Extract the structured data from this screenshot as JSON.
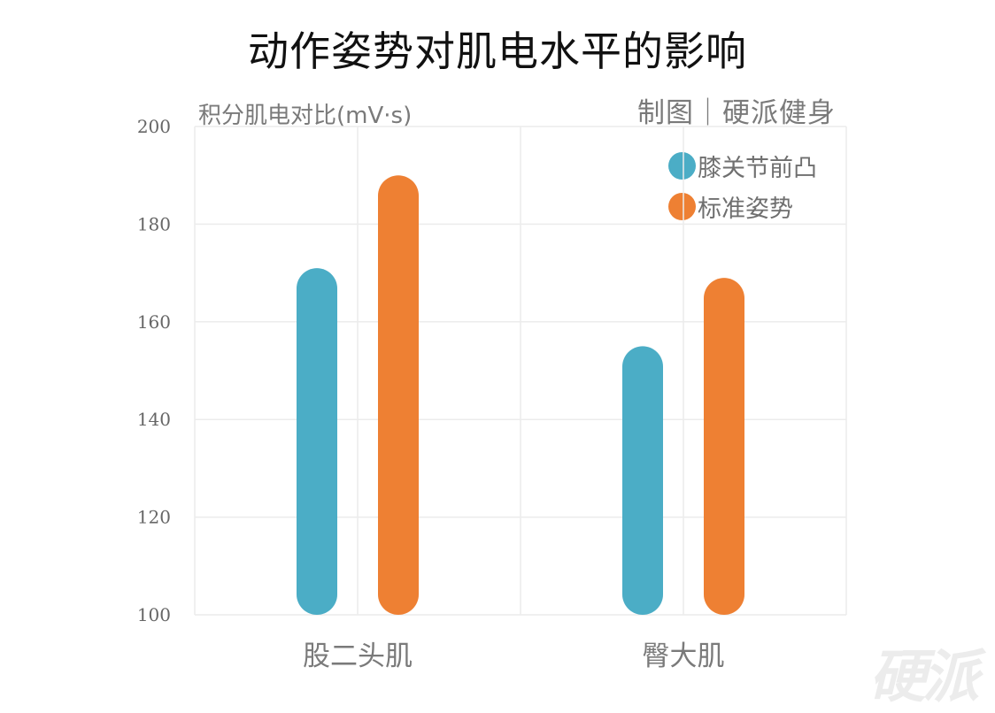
{
  "title": "动作姿势对肌电水平的影响",
  "credit": "制图｜硬派健身",
  "watermark": "硬派",
  "chart_data": {
    "type": "bar",
    "title": "动作姿势对肌电水平的影响",
    "ylabel": "积分肌电对比(mV·s)",
    "xlabel": "",
    "ylim": [
      100,
      200
    ],
    "yticks": [
      100,
      120,
      140,
      160,
      180,
      200
    ],
    "ytick_labels": [
      "100",
      "120",
      "140",
      "160",
      "180",
      "200"
    ],
    "categories": [
      "股二头肌",
      "臀大肌"
    ],
    "series": [
      {
        "name": "膝关节前凸",
        "color": "#4badc6",
        "values": [
          171,
          155
        ]
      },
      {
        "name": "标准姿势",
        "color": "#ee8033",
        "values": [
          190,
          169
        ]
      }
    ],
    "grid": true,
    "legend_position": "top-right"
  }
}
